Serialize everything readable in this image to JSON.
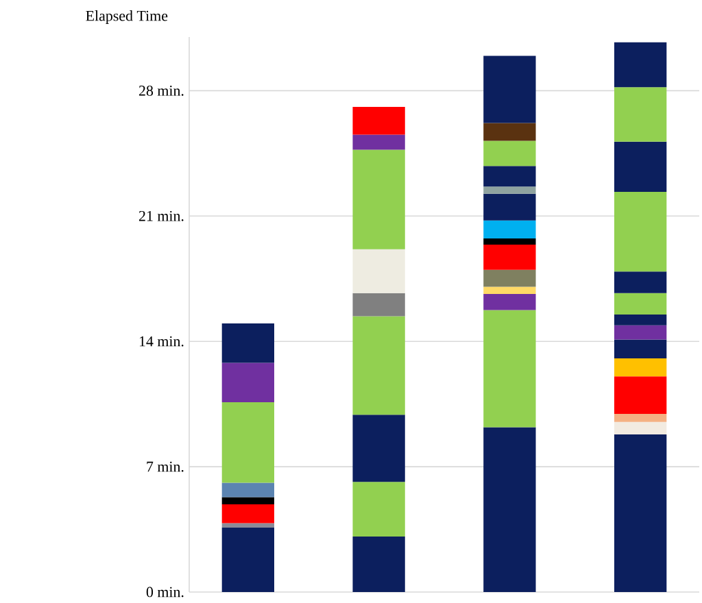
{
  "chart_data": {
    "type": "bar",
    "stacked": true,
    "ylabel": "Elapsed Time",
    "categories": [
      null,
      null,
      null,
      null
    ],
    "ylim": [
      0,
      31
    ],
    "yticks": [
      {
        "value": 0,
        "label": "0 min."
      },
      {
        "value": 7,
        "label": "7 min."
      },
      {
        "value": 14,
        "label": "14 min."
      },
      {
        "value": 21,
        "label": "21 min."
      },
      {
        "value": 28,
        "label": "28 min."
      }
    ],
    "grid": "y",
    "series": [
      {
        "values": [
          3.6,
          3.1,
          9.2,
          8.8
        ],
        "colors": [
          "#0c1f5e",
          "#0c1f5e",
          "#0c1f5e",
          "#0c1f5e"
        ]
      },
      {
        "values": [
          0.25,
          3.05,
          6.55,
          0.7
        ],
        "colors": [
          "#8b8b98",
          "#92d050",
          "#92d050",
          "#f2ebe1"
        ]
      },
      {
        "values": [
          1.05,
          3.75,
          0.9,
          0.45
        ],
        "colors": [
          "#ff0000",
          "#0c1f5e",
          "#7030a0",
          "#f4b183"
        ]
      },
      {
        "values": [
          0.4,
          5.5,
          0.4,
          2.1
        ],
        "colors": [
          "#000000",
          "#92d050",
          "#ffd966",
          "#ff0000"
        ]
      },
      {
        "values": [
          0.8,
          1.3,
          0.95,
          1.0
        ],
        "colors": [
          "#5b84b1",
          "#808080",
          "#7f8060",
          "#ffc000"
        ]
      },
      {
        "values": [
          4.5,
          2.45,
          1.4,
          1.05
        ],
        "colors": [
          "#92d050",
          "#eeece1",
          "#ff0000",
          "#0c1f5e"
        ]
      },
      {
        "values": [
          2.2,
          5.55,
          0.35,
          0.8
        ],
        "colors": [
          "#7030a0",
          "#92d050",
          "#000000",
          "#7030a0"
        ]
      },
      {
        "values": [
          2.2,
          0.85,
          1.0,
          0.6
        ],
        "colors": [
          "#0c1f5e",
          "#7030a0",
          "#00b0f0",
          "#0c1f5e"
        ]
      },
      {
        "values": [
          null,
          1.55,
          1.5,
          1.2
        ],
        "colors": [
          "#0c1f5e",
          "#ff0000",
          "#0c1f5e",
          "#92d050"
        ]
      },
      {
        "values": [
          null,
          null,
          0.4,
          1.2
        ],
        "colors": [
          "#0c1f5e",
          "#0c1f5e",
          "#8fa3a0",
          "#0c1f5e"
        ]
      },
      {
        "values": [
          null,
          null,
          1.15,
          4.45
        ],
        "colors": [
          "#0c1f5e",
          "#0c1f5e",
          "#0c1f5e",
          "#92d050"
        ]
      },
      {
        "values": [
          null,
          null,
          1.4,
          2.8
        ],
        "colors": [
          "#0c1f5e",
          "#0c1f5e",
          "#92d050",
          "#0c1f5e"
        ]
      },
      {
        "values": [
          null,
          null,
          1.0,
          3.05
        ],
        "colors": [
          "#0c1f5e",
          "#0c1f5e",
          "#5a3210",
          "#92d050"
        ]
      },
      {
        "values": [
          null,
          null,
          3.75,
          2.5
        ],
        "colors": [
          "#0c1f5e",
          "#0c1f5e",
          "#0c1f5e",
          "#0c1f5e"
        ]
      }
    ]
  }
}
